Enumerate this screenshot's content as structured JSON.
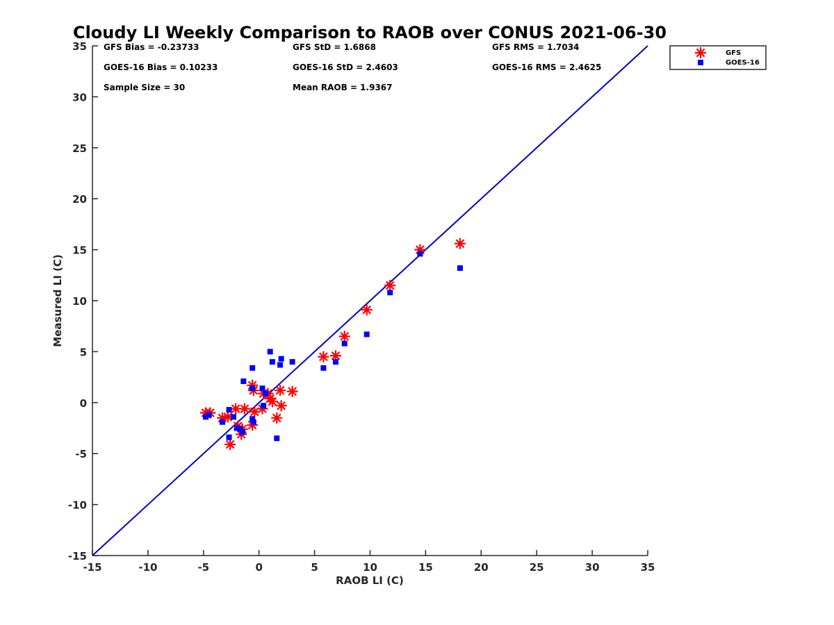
{
  "chart_data": {
    "type": "scatter",
    "title": "Cloudy LI Weekly Comparison to RAOB over CONUS 2021-06-30",
    "xlabel": "RAOB LI (C)",
    "ylabel": "Measured LI (C)",
    "xlim": [
      -15,
      35
    ],
    "ylim": [
      -15,
      35
    ],
    "x_ticks": [
      "-15",
      "-10",
      "-5",
      "0",
      "5",
      "10",
      "15",
      "20",
      "25",
      "30",
      "35"
    ],
    "y_ticks": [
      "-15",
      "-10",
      "-5",
      "0",
      "5",
      "10",
      "15",
      "20",
      "25",
      "30",
      "35"
    ],
    "grid": false,
    "legend_position": "top-right",
    "reference_line": {
      "x": [
        -15,
        35
      ],
      "y": [
        -15,
        35
      ],
      "color": "#0000cc"
    },
    "stats": [
      [
        "GFS Bias = -0.23733",
        "GFS StD = 1.6868",
        "GFS RMS = 1.7034"
      ],
      [
        "GOES-16 Bias = 0.10233",
        "GOES-16 StD = 2.4603",
        "GOES-16 RMS = 2.4625"
      ],
      [
        "Sample Size = 30",
        "Mean RAOB = 1.9367",
        ""
      ]
    ],
    "series": [
      {
        "name": "GFS",
        "marker": "asterisk",
        "color": "#ff0000",
        "x": [
          -4.8,
          -4.4,
          -3.3,
          -2.8,
          -2.6,
          -2.1,
          -1.9,
          -1.6,
          -1.5,
          -1.3,
          -0.6,
          -0.6,
          -0.5,
          -0.4,
          0.3,
          0.4,
          0.8,
          1.0,
          1.2,
          1.6,
          1.9,
          2.0,
          3.0,
          5.8,
          6.9,
          7.7,
          9.7,
          11.8,
          14.5,
          18.1
        ],
        "y": [
          -1.0,
          -1.0,
          -1.5,
          -1.4,
          -4.1,
          -0.6,
          -2.3,
          -3.1,
          -2.6,
          -0.6,
          1.7,
          -2.2,
          1.2,
          -0.9,
          -0.6,
          0.9,
          0.9,
          0.4,
          0.1,
          -1.5,
          1.2,
          -0.3,
          1.1,
          4.5,
          4.6,
          6.5,
          9.1,
          11.5,
          15.0,
          15.6
        ]
      },
      {
        "name": "GOES-16",
        "marker": "square",
        "color": "#0000ff",
        "x": [
          -4.8,
          -4.5,
          -3.3,
          -2.7,
          -2.7,
          -2.3,
          -2.0,
          -1.7,
          -1.5,
          -1.4,
          -0.6,
          -0.6,
          -0.6,
          -0.5,
          0.3,
          0.4,
          0.6,
          1.0,
          1.2,
          1.6,
          1.9,
          2.0,
          3.0,
          5.8,
          6.9,
          7.7,
          9.7,
          11.8,
          14.5,
          18.1
        ],
        "y": [
          -1.4,
          -1.2,
          -1.9,
          -0.7,
          -3.4,
          -1.4,
          -2.5,
          -2.6,
          -2.9,
          2.1,
          3.4,
          -1.6,
          1.4,
          -1.9,
          1.4,
          -0.3,
          0.9,
          5.0,
          4.0,
          -3.5,
          3.7,
          4.3,
          4.0,
          3.4,
          4.0,
          5.8,
          6.7,
          10.8,
          14.6,
          13.2
        ]
      }
    ]
  }
}
